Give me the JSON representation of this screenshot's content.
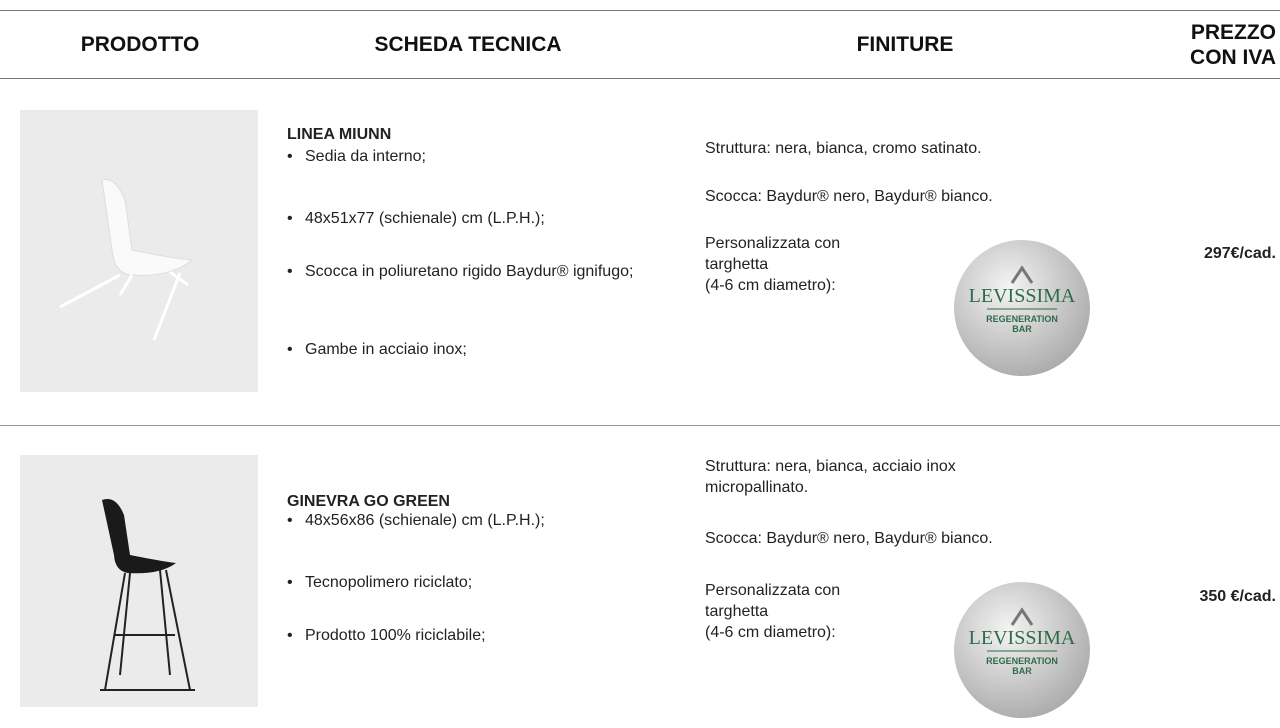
{
  "header": {
    "columns": [
      "PRODOTTO",
      "SCHEDA TECNICA",
      "FINITURE",
      "PREZZO CON IVA"
    ]
  },
  "rows": [
    {
      "title": "LINEA MIUNN",
      "bullets": [
        "Sedia da interno;",
        "48x51x77 (schienale) cm (L.P.H.);",
        "Scocca in poliuretano rigido Baydur® ignifugo;",
        "Gambe in acciaio inox;"
      ],
      "finishes": [
        "Struttura: nera, bianca, cromo satinato.",
        "Scocca: Baydur® nero, Baydur® bianco."
      ],
      "personalization": [
        "Personalizzata con",
        "targhetta",
        "(4-6 cm diametro):"
      ],
      "badge": {
        "brand": "LEVISSIMA",
        "line1": "REGENERATION",
        "line2": "BAR"
      },
      "price": "297€/cad."
    },
    {
      "title": "GINEVRA GO GREEN",
      "bullets": [
        "48x56x86 (schienale) cm (L.P.H.);",
        "Tecnopolimero riciclato;",
        "Prodotto 100% riciclabile;"
      ],
      "finishes": [
        "Struttura: nera, bianca, acciaio inox micropallinato.",
        "Scocca: Baydur® nero, Baydur® bianco."
      ],
      "personalization": [
        "Personalizzata con",
        "targhetta",
        "(4-6 cm diametro):"
      ],
      "badge": {
        "brand": "LEVISSIMA",
        "line1": "REGENERATION",
        "line2": "BAR"
      },
      "price": "350 €/cad."
    }
  ]
}
